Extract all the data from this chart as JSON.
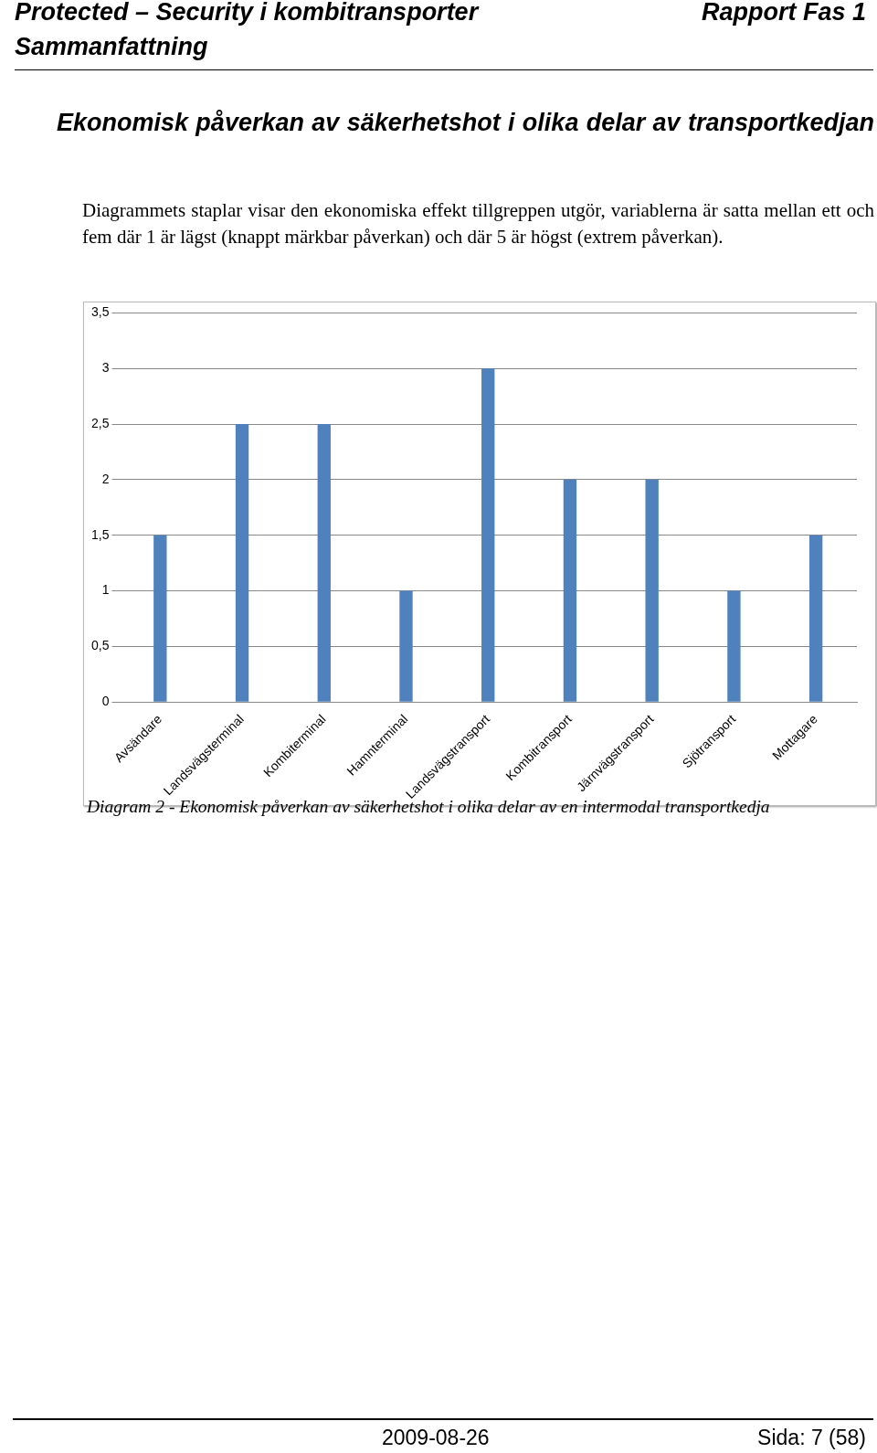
{
  "chart_data": {
    "type": "bar",
    "title": "Ekonomisk påverkan av säkerhetshot i olika delar av transportkedjan",
    "subtitle": "Diagrammets staplar visar den ekonomiska effekt tillgreppen utgör, variablerna är satta mellan ett och fem där 1 är lägst (knappt märkbar påverkan) och där 5 är högst (extrem påverkan).",
    "annotations": [
      "Protected – Security i kombitransporter",
      "Rapport Fas 1",
      "Sammanfattning",
      "Diagram 2 - Ekonomisk påverkan av säkerhetshot i olika delar av en intermodal transportkedja",
      "2009-08-26",
      "Sida: 7 (58)"
    ],
    "categories": [
      "Avsändare",
      "Landsvägsterminal",
      "Kombiterminal",
      "Hamnterminal",
      "Landsvägstransport",
      "Kombitransport",
      "Järnvägstransport",
      "Sjötransport",
      "Mottagare"
    ],
    "values": [
      1.5,
      2.5,
      2.5,
      1,
      3,
      2,
      2,
      1,
      1.5
    ],
    "color": "#4f81bd",
    "ylim": [
      0,
      3.5
    ],
    "yticks": [
      0,
      {
        "value": 0.5,
        "label": "0,5"
      },
      1,
      {
        "value": 1.5,
        "label": "1,5"
      },
      2,
      {
        "value": 2.5,
        "label": "2,5"
      },
      3,
      {
        "value": 3.5,
        "label": "3,5"
      }
    ],
    "grid": "y",
    "legend": false
  }
}
